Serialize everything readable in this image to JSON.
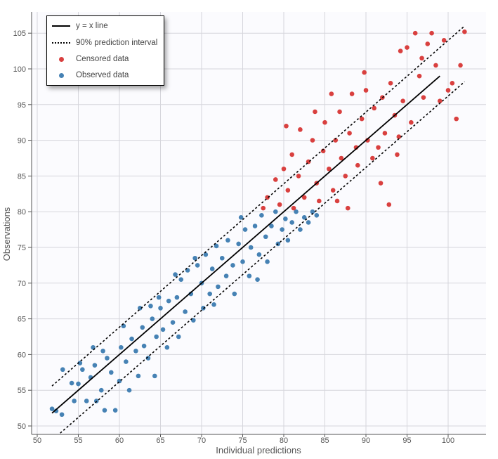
{
  "chart_data": {
    "type": "scatter",
    "xlabel": "Individual predictions",
    "ylabel": "Observations",
    "xlim": [
      48.5,
      104
    ],
    "ylim": [
      48.8,
      108
    ],
    "xticks": [
      50,
      55,
      60,
      65,
      70,
      75,
      80,
      85,
      90,
      95,
      100
    ],
    "yticks": [
      50,
      55,
      60,
      65,
      70,
      75,
      80,
      85,
      90,
      95,
      100,
      105
    ],
    "grid": true,
    "legend_placement": "top-left",
    "colors": {
      "censored": "#d9403f",
      "observed": "#4682b4",
      "lines": "#000000",
      "plot_bg": "#fbfbfe"
    },
    "legend": [
      {
        "label": "y = x line",
        "style": "solid"
      },
      {
        "label": "90% prediction interval",
        "style": "dotted"
      },
      {
        "label": "Censored data",
        "style": "dot",
        "color": "#d9403f"
      },
      {
        "label": "Observed data",
        "style": "dot",
        "color": "#4682b4"
      }
    ],
    "identity_line": [
      [
        51.8,
        51.8
      ],
      [
        99,
        99
      ]
    ],
    "pi_upper": [
      [
        51.8,
        55.6
      ],
      [
        102,
        106
      ]
    ],
    "pi_lower": [
      [
        52.8,
        49
      ],
      [
        102,
        98.2
      ]
    ],
    "series": [
      {
        "name": "Observed data",
        "color": "#4682b4",
        "points": [
          [
            51.8,
            52.4
          ],
          [
            52.3,
            52.1
          ],
          [
            53,
            51.6
          ],
          [
            53.1,
            57.9
          ],
          [
            54.2,
            56
          ],
          [
            54.5,
            53.5
          ],
          [
            55,
            55.9
          ],
          [
            55.5,
            57.9
          ],
          [
            56,
            53.5
          ],
          [
            56.5,
            56.8
          ],
          [
            57,
            58.5
          ],
          [
            57.2,
            53.5
          ],
          [
            57.8,
            55
          ],
          [
            58.2,
            52.2
          ],
          [
            58.5,
            59.5
          ],
          [
            59,
            57.5
          ],
          [
            59.5,
            52.2
          ],
          [
            60,
            56.3
          ],
          [
            60.2,
            61
          ],
          [
            60.8,
            59
          ],
          [
            61.2,
            55
          ],
          [
            61.5,
            62.2
          ],
          [
            62,
            60.5
          ],
          [
            62.3,
            57
          ],
          [
            62.8,
            63.8
          ],
          [
            63,
            61.2
          ],
          [
            63.5,
            59.5
          ],
          [
            64,
            65
          ],
          [
            64.3,
            57
          ],
          [
            64.5,
            62.5
          ],
          [
            65,
            66.5
          ],
          [
            65.3,
            63.5
          ],
          [
            65.8,
            61
          ],
          [
            66,
            67.5
          ],
          [
            66.5,
            64.5
          ],
          [
            67,
            68
          ],
          [
            67.2,
            62.5
          ],
          [
            67.5,
            70.5
          ],
          [
            68,
            66
          ],
          [
            68.3,
            71.8
          ],
          [
            68.7,
            68.5
          ],
          [
            69,
            64.8
          ],
          [
            69.5,
            72.5
          ],
          [
            70,
            70
          ],
          [
            70.2,
            66.5
          ],
          [
            70.5,
            74
          ],
          [
            71,
            68.5
          ],
          [
            71.3,
            72
          ],
          [
            71.8,
            75.2
          ],
          [
            72,
            69.5
          ],
          [
            72.5,
            73.5
          ],
          [
            73,
            71
          ],
          [
            73.2,
            76
          ],
          [
            73.8,
            72.5
          ],
          [
            74,
            68.5
          ],
          [
            74.5,
            75.5
          ],
          [
            75,
            73
          ],
          [
            75.3,
            77.5
          ],
          [
            75.8,
            71
          ],
          [
            76,
            75
          ],
          [
            76.5,
            78
          ],
          [
            77,
            74
          ],
          [
            77.3,
            79.5
          ],
          [
            77.8,
            76.5
          ],
          [
            78,
            73
          ],
          [
            78.5,
            78
          ],
          [
            79,
            80
          ],
          [
            79.3,
            75.5
          ],
          [
            79.8,
            77.5
          ],
          [
            80.2,
            79
          ],
          [
            80.5,
            76
          ],
          [
            81,
            78.5
          ],
          [
            81.5,
            80
          ],
          [
            82,
            77.5
          ],
          [
            82.5,
            79.2
          ],
          [
            83,
            78.5
          ],
          [
            83.5,
            80
          ],
          [
            84,
            79.5
          ],
          [
            60.5,
            64
          ],
          [
            58,
            60.5
          ],
          [
            56.8,
            61
          ],
          [
            55.2,
            58.8
          ],
          [
            63.8,
            66.8
          ],
          [
            66.8,
            71.2
          ],
          [
            69.2,
            73.5
          ],
          [
            71.5,
            67
          ],
          [
            74.8,
            79.2
          ],
          [
            76.8,
            70.5
          ],
          [
            62.5,
            66.5
          ],
          [
            64.8,
            68
          ]
        ]
      },
      {
        "name": "Censored data",
        "color": "#d9403f",
        "points": [
          [
            77.5,
            80.5
          ],
          [
            78,
            82
          ],
          [
            79,
            84.5
          ],
          [
            79.5,
            81
          ],
          [
            80,
            86
          ],
          [
            80.5,
            83
          ],
          [
            81,
            88
          ],
          [
            81.2,
            80.5
          ],
          [
            81.8,
            85
          ],
          [
            82,
            91.5
          ],
          [
            82.5,
            82
          ],
          [
            83,
            87
          ],
          [
            83.5,
            90
          ],
          [
            84,
            84
          ],
          [
            84.3,
            81.5
          ],
          [
            84.8,
            88.5
          ],
          [
            85,
            92.5
          ],
          [
            85.5,
            86
          ],
          [
            86,
            83
          ],
          [
            86.3,
            90
          ],
          [
            86.8,
            94
          ],
          [
            87,
            87.5
          ],
          [
            87.5,
            85
          ],
          [
            88,
            91
          ],
          [
            88.3,
            96.5
          ],
          [
            88.8,
            89
          ],
          [
            89,
            86.5
          ],
          [
            89.5,
            93
          ],
          [
            90,
            97
          ],
          [
            90.2,
            90
          ],
          [
            90.8,
            87.5
          ],
          [
            91,
            94.5
          ],
          [
            91.5,
            89
          ],
          [
            92,
            96
          ],
          [
            92.3,
            91
          ],
          [
            92.8,
            81
          ],
          [
            93,
            98
          ],
          [
            93.5,
            93.5
          ],
          [
            94,
            90.5
          ],
          [
            94.5,
            95.5
          ],
          [
            95,
            103
          ],
          [
            95.5,
            92.5
          ],
          [
            96,
            105
          ],
          [
            96.5,
            99
          ],
          [
            97,
            96
          ],
          [
            97.5,
            103.5
          ],
          [
            98,
            105
          ],
          [
            98.5,
            100.5
          ],
          [
            99,
            95.5
          ],
          [
            99.5,
            104
          ],
          [
            100,
            97
          ],
          [
            101,
            93
          ],
          [
            101.5,
            100.5
          ],
          [
            102,
            105.2
          ],
          [
            100.5,
            98
          ],
          [
            96.8,
            101.5
          ],
          [
            94.2,
            102.5
          ],
          [
            87.8,
            80.5
          ],
          [
            83.8,
            94
          ],
          [
            80.3,
            92
          ],
          [
            85.8,
            96.5
          ],
          [
            89.8,
            99.5
          ],
          [
            91.8,
            84
          ],
          [
            93.8,
            88
          ],
          [
            86.5,
            81.5
          ]
        ]
      }
    ]
  }
}
